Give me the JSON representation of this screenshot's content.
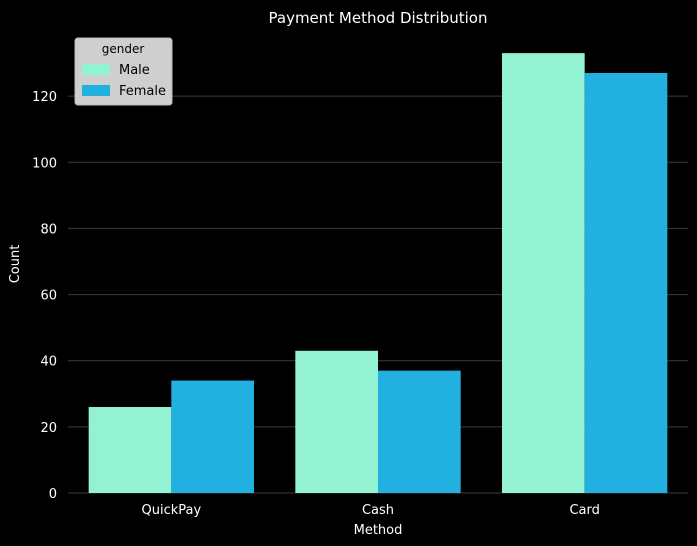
{
  "chart_data": {
    "type": "bar",
    "title": "Payment Method Distribution",
    "xlabel": "Method",
    "ylabel": "Count",
    "categories": [
      "QuickPay",
      "Cash",
      "Card"
    ],
    "series": [
      {
        "name": "Male",
        "values": [
          26,
          43,
          133
        ],
        "color": "#93f2d1"
      },
      {
        "name": "Female",
        "values": [
          34,
          37,
          127
        ],
        "color": "#21b0e0"
      }
    ],
    "ylim": [
      0,
      140
    ],
    "yticks": [
      0,
      20,
      40,
      60,
      80,
      100,
      120
    ],
    "ytick_labels": [
      "0",
      "20",
      "40",
      "60",
      "80",
      "100",
      "120"
    ],
    "grid": true,
    "legend": {
      "title": "gender",
      "position": "top-left"
    }
  },
  "colors": {
    "background": "#000000",
    "text": "#ffffff",
    "grid": "#3a3a3a",
    "legend_bg": "#cfcfcf"
  }
}
